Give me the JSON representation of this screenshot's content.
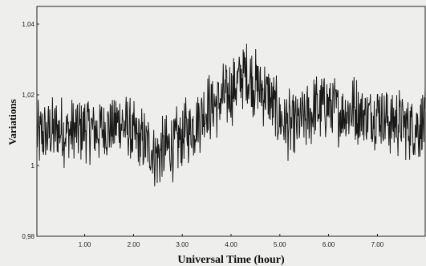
{
  "chart_data": {
    "type": "line",
    "title": "",
    "xlabel": "Universal Time (hour)",
    "ylabel": "Variations",
    "xlim": [
      0.02,
      7.98
    ],
    "ylim": [
      0.98,
      1.045
    ],
    "x_ticks": [
      1,
      2,
      3,
      4,
      5,
      6,
      7
    ],
    "x_tick_labels": [
      "1.00",
      "2.00",
      "3.00",
      "4.00",
      "5.00",
      "6.00",
      "7.00"
    ],
    "y_ticks": [
      0.98,
      1.0,
      1.02,
      1.04
    ],
    "y_tick_labels": [
      "0,98",
      "1",
      "1,02",
      "1,04"
    ],
    "grid": false,
    "legend": "none",
    "line_color": "#1a1a1a",
    "series": [
      {
        "x": [
          0.0,
          0.25,
          0.5,
          0.75,
          1.0,
          1.25,
          1.5,
          1.75,
          2.0,
          2.25,
          2.5,
          2.75,
          3.0,
          3.25,
          3.5,
          3.75,
          4.0,
          4.25,
          4.5,
          4.75,
          5.0,
          5.25,
          5.5,
          5.75,
          6.0,
          6.25,
          6.5,
          6.75,
          7.0,
          7.25,
          7.5,
          7.75,
          8.0
        ],
        "values": [
          1.008,
          1.009,
          1.01,
          1.009,
          1.011,
          1.01,
          1.011,
          1.012,
          1.008,
          1.006,
          1.003,
          1.005,
          1.008,
          1.012,
          1.016,
          1.018,
          1.021,
          1.026,
          1.023,
          1.02,
          1.013,
          1.011,
          1.013,
          1.016,
          1.017,
          1.015,
          1.016,
          1.014,
          1.015,
          1.013,
          1.012,
          1.011,
          1.012
        ]
      }
    ]
  }
}
